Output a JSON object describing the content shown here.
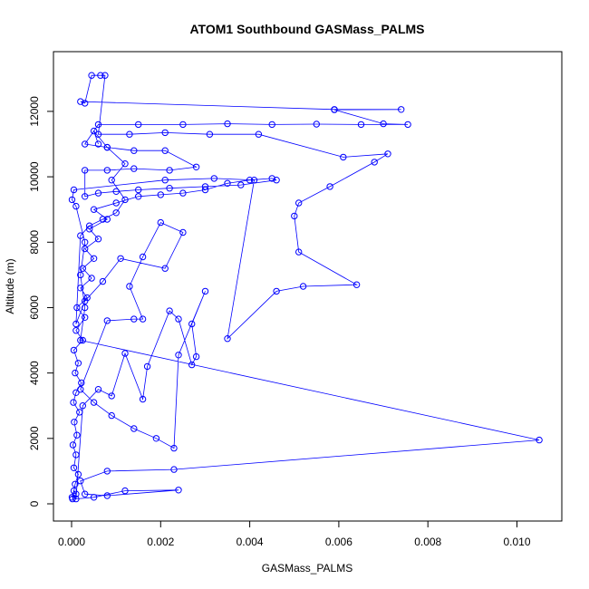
{
  "chart_data": {
    "type": "line",
    "title": "ATOM1 Southbound GASMass_PALMS",
    "xlabel": "GASMass_PALMS",
    "ylabel": "Altitude (m)",
    "xlim": [
      0,
      0.0106
    ],
    "ylim": [
      0,
      13300
    ],
    "xticks": [
      0.0,
      0.002,
      0.004,
      0.006,
      0.008,
      0.01
    ],
    "xtick_labels": [
      "0.000",
      "0.002",
      "0.004",
      "0.006",
      "0.008",
      "0.010"
    ],
    "yticks": [
      0,
      2000,
      4000,
      6000,
      8000,
      10000,
      12000
    ],
    "ytick_labels": [
      "0",
      "2000",
      "4000",
      "6000",
      "8000",
      "10000",
      "12000"
    ],
    "grid": false,
    "legend": "none",
    "marker": "open-circle",
    "series": [
      {
        "color": "#0000FF",
        "points": [
          [
            1e-05,
            200
          ],
          [
            5e-05,
            400
          ],
          [
            0.0001,
            300
          ],
          [
            2e-05,
            150
          ],
          [
            8e-05,
            600
          ],
          [
            0.00015,
            900
          ],
          [
            5e-05,
            1100
          ],
          [
            0.0001,
            1500
          ],
          [
            3e-05,
            1800
          ],
          [
            0.00012,
            2100
          ],
          [
            6e-05,
            2500
          ],
          [
            0.00018,
            2800
          ],
          [
            4e-05,
            3100
          ],
          [
            0.0001,
            3400
          ],
          [
            0.00022,
            3700
          ],
          [
            8e-05,
            4000
          ],
          [
            0.00015,
            4300
          ],
          [
            5e-05,
            4700
          ],
          [
            0.00025,
            5000
          ],
          [
            0.0001,
            5300
          ],
          [
            0.0003,
            5700
          ],
          [
            0.00012,
            6000
          ],
          [
            0.00035,
            6300
          ],
          [
            0.0002,
            6600
          ],
          [
            0.00045,
            6900
          ],
          [
            0.00025,
            7200
          ],
          [
            0.0005,
            7500
          ],
          [
            0.0003,
            7800
          ],
          [
            0.0006,
            8100
          ],
          [
            0.0004,
            8400
          ],
          [
            0.0008,
            8700
          ],
          [
            0.0005,
            9000
          ],
          [
            0.001,
            9200
          ],
          [
            0.0015,
            9400
          ],
          [
            0.002,
            9450
          ],
          [
            0.0025,
            9500
          ],
          [
            0.003,
            9600
          ],
          [
            0.0035,
            9800
          ],
          [
            0.004,
            9900
          ],
          [
            0.0045,
            9950
          ],
          [
            0.0046,
            9900
          ],
          [
            0.0038,
            9750
          ],
          [
            0.003,
            9700
          ],
          [
            0.0022,
            9650
          ],
          [
            0.0015,
            9600
          ],
          [
            0.001,
            9550
          ],
          [
            0.0006,
            9500
          ],
          [
            0.0003,
            9400
          ],
          [
            0.0003,
            10200
          ],
          [
            0.0008,
            10200
          ],
          [
            0.0014,
            10250
          ],
          [
            0.0022,
            10200
          ],
          [
            0.0028,
            10300
          ],
          [
            0.0021,
            10800
          ],
          [
            0.0014,
            10800
          ],
          [
            0.0008,
            10900
          ],
          [
            0.0003,
            11000
          ],
          [
            0.0006,
            11600
          ],
          [
            0.0015,
            11600
          ],
          [
            0.0025,
            11600
          ],
          [
            0.0035,
            11620
          ],
          [
            0.0045,
            11600
          ],
          [
            0.0055,
            11610
          ],
          [
            0.0065,
            11600
          ],
          [
            0.00755,
            11600
          ],
          [
            0.007,
            11620
          ],
          [
            0.0059,
            12050
          ],
          [
            0.0074,
            12060
          ],
          [
            0.0059,
            12060
          ],
          [
            0.0002,
            12300
          ],
          [
            0.0003,
            12250
          ],
          [
            0.00045,
            13100
          ],
          [
            0.00065,
            13100
          ],
          [
            0.00075,
            13100
          ],
          [
            0.0006,
            11300
          ],
          [
            0.0013,
            11300
          ],
          [
            0.0021,
            11350
          ],
          [
            0.0031,
            11300
          ],
          [
            0.0042,
            11300
          ],
          [
            0.0061,
            10600
          ],
          [
            0.0071,
            10700
          ],
          [
            0.0068,
            10450
          ],
          [
            0.0058,
            9700
          ],
          [
            0.0051,
            9200
          ],
          [
            0.005,
            8800
          ],
          [
            0.0051,
            7700
          ],
          [
            0.0064,
            6700
          ],
          [
            0.0052,
            6650
          ],
          [
            0.0046,
            6500
          ],
          [
            0.0035,
            5050
          ],
          [
            0.0041,
            9900
          ],
          [
            0.0032,
            9950
          ],
          [
            0.0021,
            9900
          ],
          [
            5e-05,
            9600
          ],
          [
            1e-05,
            9300
          ],
          [
            0.0001,
            9100
          ],
          [
            0.0003,
            8000
          ],
          [
            0.0002,
            7000
          ],
          [
            0.0003,
            6000
          ],
          [
            0.0002,
            5000
          ],
          [
            0.0105,
            1950
          ],
          [
            0.0023,
            1050
          ],
          [
            0.0008,
            1000
          ],
          [
            0.0002,
            700
          ],
          [
            0.0003,
            300
          ],
          [
            0.0008,
            250
          ],
          [
            0.0024,
            420
          ],
          [
            0.0012,
            400
          ],
          [
            0.0005,
            200
          ],
          [
            0.0001,
            150
          ],
          [
            0.00025,
            3000
          ],
          [
            0.0006,
            3500
          ],
          [
            0.0009,
            3300
          ],
          [
            0.0012,
            4600
          ],
          [
            0.0016,
            3200
          ],
          [
            0.0017,
            4200
          ],
          [
            0.0022,
            5900
          ],
          [
            0.0024,
            5650
          ],
          [
            0.0027,
            4250
          ],
          [
            0.0028,
            4500
          ],
          [
            0.0027,
            5500
          ],
          [
            0.003,
            6500
          ],
          [
            0.0024,
            4550
          ],
          [
            0.0023,
            1700
          ],
          [
            0.0019,
            2000
          ],
          [
            0.0014,
            2300
          ],
          [
            0.0009,
            2700
          ],
          [
            0.0005,
            3100
          ],
          [
            0.0002,
            3500
          ],
          [
            0.0008,
            5600
          ],
          [
            0.0014,
            5650
          ],
          [
            0.0016,
            5650
          ],
          [
            0.0013,
            6650
          ],
          [
            0.0016,
            7550
          ],
          [
            0.002,
            8600
          ],
          [
            0.0025,
            8300
          ],
          [
            0.0021,
            7200
          ],
          [
            0.0011,
            7500
          ],
          [
            0.0007,
            6800
          ],
          [
            0.0003,
            6200
          ],
          [
            0.0001,
            5500
          ],
          [
            0.0002,
            8200
          ],
          [
            0.0004,
            8500
          ],
          [
            0.0007,
            8700
          ],
          [
            0.001,
            8900
          ],
          [
            0.0012,
            9300
          ],
          [
            0.0009,
            9900
          ],
          [
            0.0012,
            10400
          ],
          [
            0.0008,
            10900
          ],
          [
            0.0005,
            11400
          ],
          [
            0.0006,
            11000
          ]
        ]
      }
    ]
  }
}
